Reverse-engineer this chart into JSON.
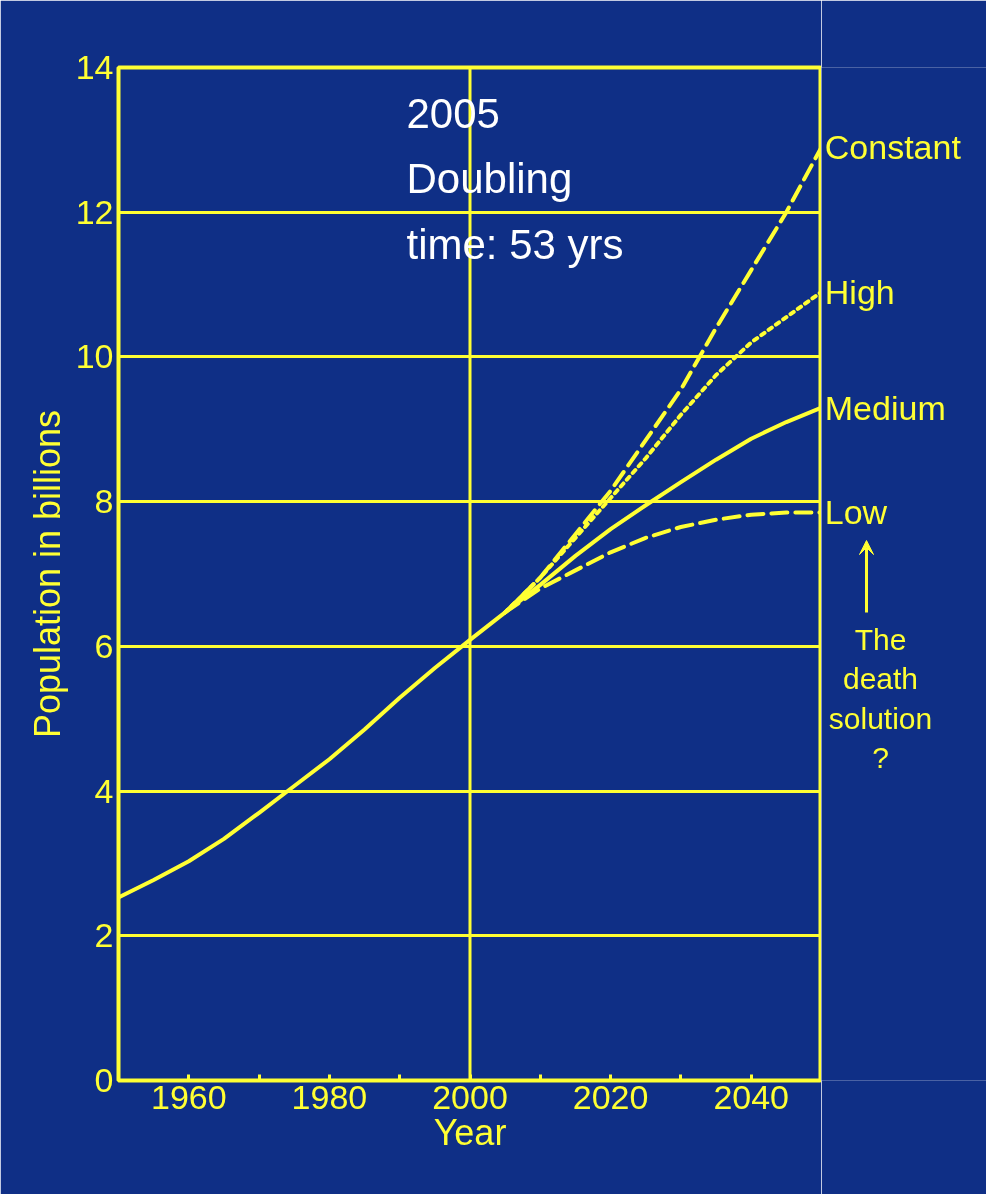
{
  "chart_data": {
    "type": "line",
    "xlabel": "Year",
    "ylabel": "Population in billions",
    "xlim": [
      1950,
      2050
    ],
    "ylim": [
      0,
      14
    ],
    "xticks": [
      {
        "value": 1950,
        "label": null
      },
      1960,
      {
        "value": 1970,
        "label": null
      },
      1980,
      {
        "value": 1990,
        "label": null
      },
      2000,
      {
        "value": 2010,
        "label": null
      },
      2020,
      {
        "value": 2030,
        "label": null
      },
      2040,
      {
        "value": 2050,
        "label": null
      }
    ],
    "yticks": [
      0,
      2,
      4,
      6,
      8,
      10,
      12,
      14
    ],
    "grid": "y",
    "ref_lines": [
      {
        "axis": "x",
        "value": 2000,
        "label": null,
        "color": "#ffff33"
      }
    ],
    "annotations": [
      "2005\nDoubling\ntime: 53 yrs",
      "The\ndeath\nsolution\n?"
    ],
    "series": [
      {
        "name": "Constant",
        "color": "#ffff33",
        "line_style": "dashed",
        "x": [
          2005,
          2010,
          2015,
          2020,
          2025,
          2030,
          2035,
          2040,
          2045,
          2050
        ],
        "values": [
          6.47,
          6.95,
          7.55,
          8.15,
          8.85,
          9.55,
          10.4,
          11.2,
          12.0,
          12.9
        ]
      },
      {
        "name": "High",
        "color": "#ffff33",
        "line_style": "dotted",
        "x": [
          2005,
          2010,
          2015,
          2020,
          2025,
          2030,
          2035,
          2040,
          2045,
          2050
        ],
        "values": [
          6.47,
          6.95,
          7.5,
          8.05,
          8.6,
          9.2,
          9.75,
          10.2,
          10.55,
          10.9
        ]
      },
      {
        "name": "Medium",
        "color": "#ffff33",
        "line_style": "solid",
        "x": [
          1950,
          1955,
          1960,
          1965,
          1970,
          1975,
          1980,
          1985,
          1990,
          1995,
          2000,
          2005,
          2010,
          2015,
          2020,
          2025,
          2030,
          2035,
          2040,
          2045,
          2050
        ],
        "values": [
          2.53,
          2.77,
          3.03,
          3.34,
          3.7,
          4.07,
          4.44,
          4.85,
          5.29,
          5.7,
          6.09,
          6.47,
          6.85,
          7.25,
          7.62,
          7.95,
          8.27,
          8.58,
          8.87,
          9.1,
          9.3
        ]
      },
      {
        "name": "Low",
        "color": "#ffff33",
        "line_style": "dashed",
        "x": [
          2005,
          2010,
          2015,
          2020,
          2025,
          2030,
          2035,
          2040,
          2045,
          2050
        ],
        "values": [
          6.47,
          6.8,
          7.05,
          7.3,
          7.5,
          7.65,
          7.75,
          7.82,
          7.85,
          7.85
        ]
      }
    ]
  }
}
